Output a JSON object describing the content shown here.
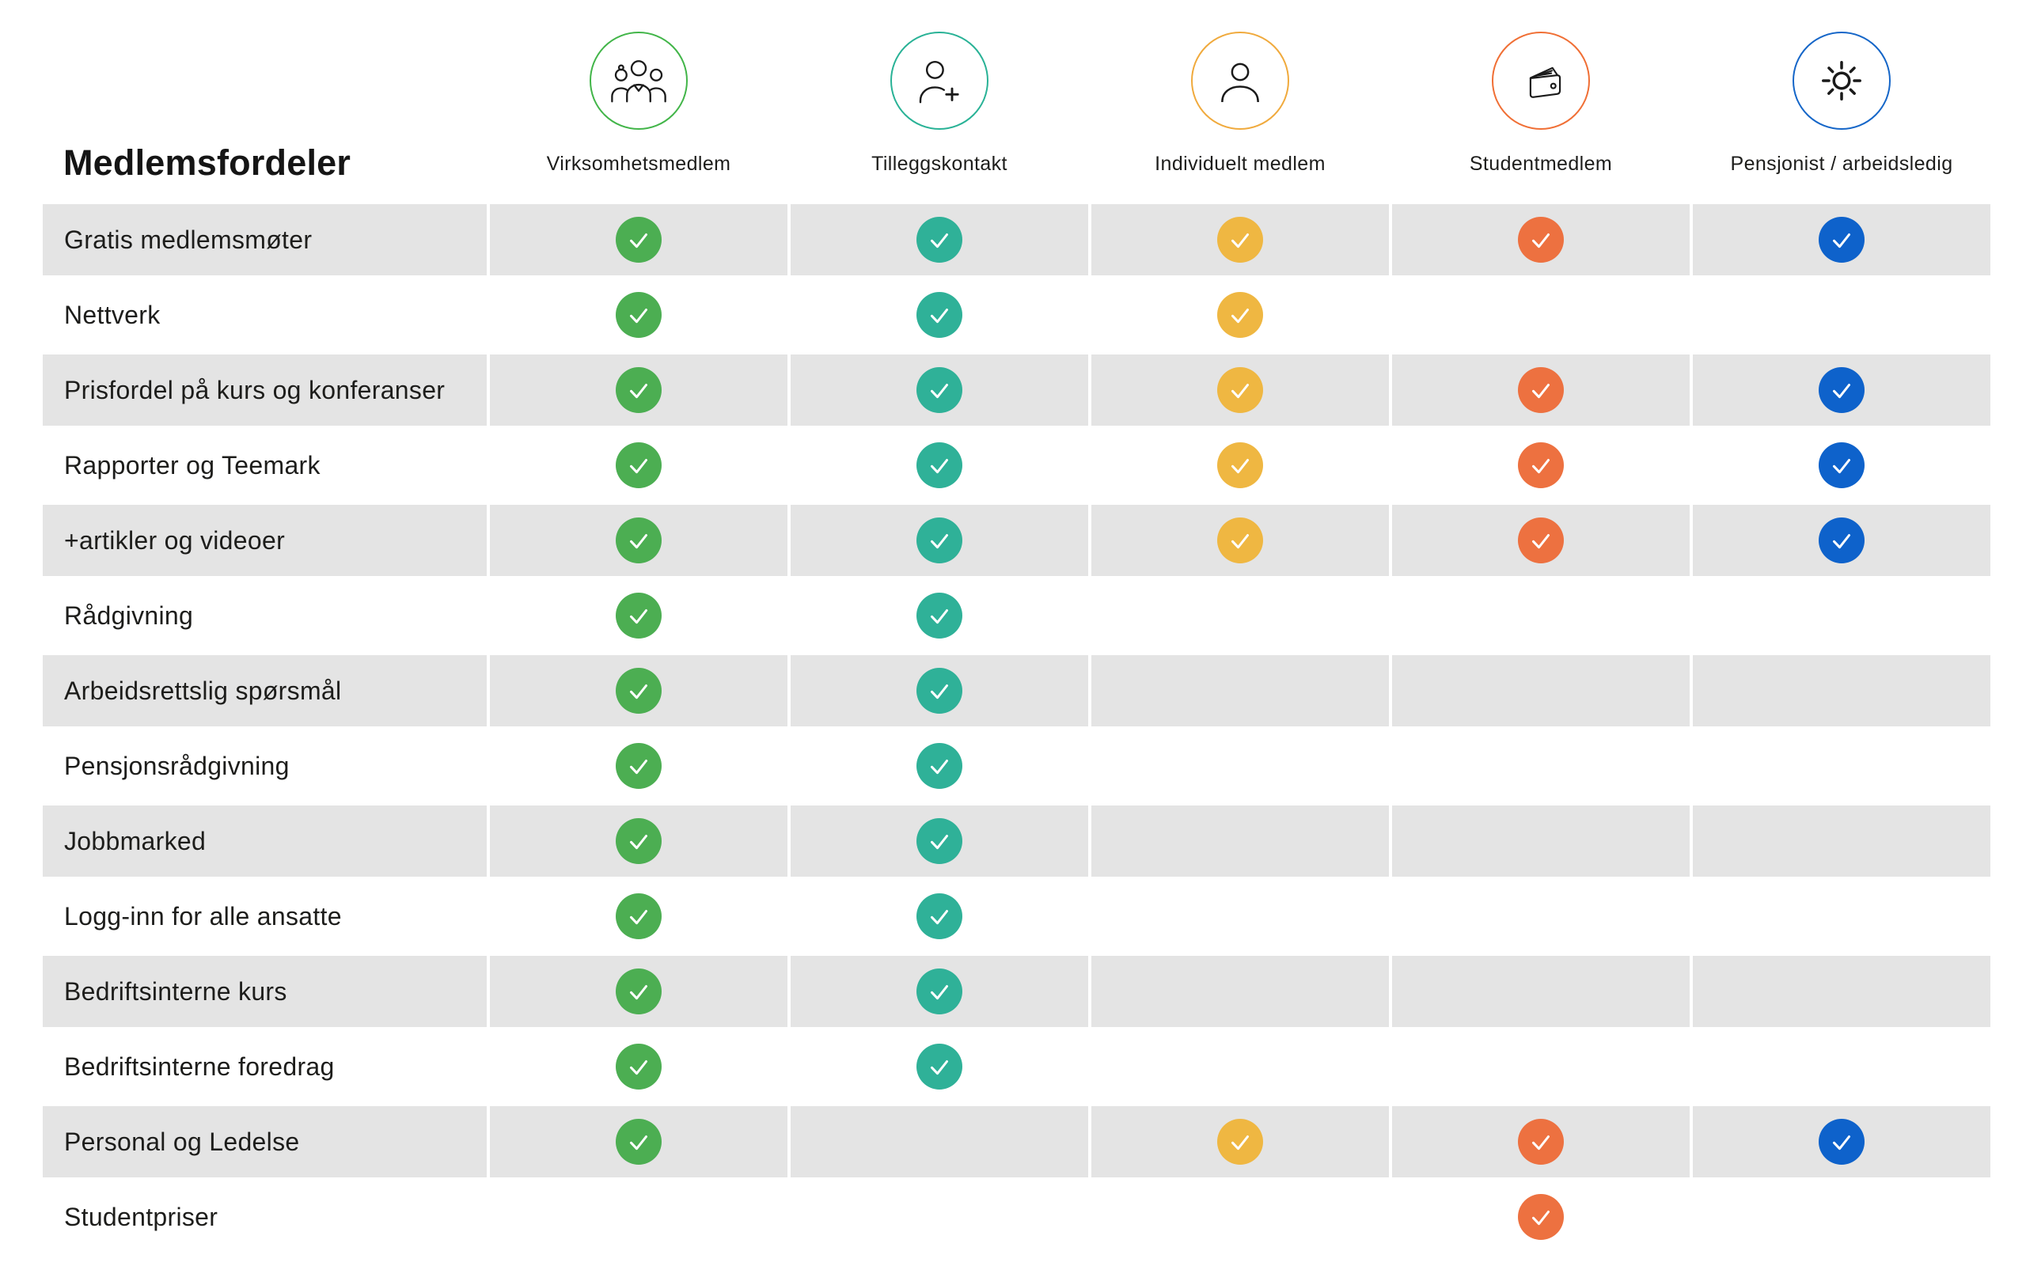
{
  "title": "Medlemsfordeler",
  "columns": [
    {
      "label": "Virksomhetsmedlem",
      "icon": "people-group-icon",
      "ring_color": "#42B549",
      "check_color": "#4CAE52"
    },
    {
      "label": "Tilleggskontakt",
      "icon": "person-plus-icon",
      "ring_color": "#29B296",
      "check_color": "#2FB198"
    },
    {
      "label": "Individuelt medlem",
      "icon": "person-icon",
      "ring_color": "#F0AA3D",
      "check_color": "#EFB742"
    },
    {
      "label": "Studentmedlem",
      "icon": "wallet-icon",
      "ring_color": "#F06F35",
      "check_color": "#ED7140"
    },
    {
      "label": "Pensjonist / arbeidsledig",
      "icon": "sun-icon",
      "ring_color": "#1566C8",
      "check_color": "#0E62CB"
    }
  ],
  "rows": [
    {
      "label": "Gratis medlemsmøter",
      "checks": [
        true,
        true,
        true,
        true,
        true
      ]
    },
    {
      "label": "Nettverk",
      "checks": [
        true,
        true,
        true,
        false,
        false
      ]
    },
    {
      "label": "Prisfordel på kurs og konferanser",
      "checks": [
        true,
        true,
        true,
        true,
        true
      ]
    },
    {
      "label": "Rapporter og Teemark",
      "checks": [
        true,
        true,
        true,
        true,
        true
      ]
    },
    {
      "label": "+artikler og videoer",
      "checks": [
        true,
        true,
        true,
        true,
        true
      ]
    },
    {
      "label": "Rådgivning",
      "checks": [
        true,
        true,
        false,
        false,
        false
      ]
    },
    {
      "label": "Arbeidsrettslig spørsmål",
      "checks": [
        true,
        true,
        false,
        false,
        false
      ]
    },
    {
      "label": "Pensjonsrådgivning",
      "checks": [
        true,
        true,
        false,
        false,
        false
      ]
    },
    {
      "label": "Jobbmarked",
      "checks": [
        true,
        true,
        false,
        false,
        false
      ]
    },
    {
      "label": "Logg-inn for alle ansatte",
      "checks": [
        true,
        true,
        false,
        false,
        false
      ]
    },
    {
      "label": "Bedriftsinterne kurs",
      "checks": [
        true,
        true,
        false,
        false,
        false
      ]
    },
    {
      "label": "Bedriftsinterne foredrag",
      "checks": [
        true,
        true,
        false,
        false,
        false
      ]
    },
    {
      "label": "Personal og Ledelse",
      "checks": [
        true,
        false,
        true,
        true,
        true
      ]
    },
    {
      "label": "Studentpriser",
      "checks": [
        false,
        false,
        false,
        true,
        false
      ]
    }
  ],
  "colors": {
    "row_stripe": "#E4E4E4",
    "background": "#FFFFFF",
    "text": "#1D1D1B",
    "check_mark": "#FFFFFF",
    "icon_stroke": "#1A1A1A"
  },
  "chart_data": {
    "type": "table",
    "title": "Medlemsfordeler",
    "columns": [
      "Virksomhetsmedlem",
      "Tilleggskontakt",
      "Individuelt medlem",
      "Studentmedlem",
      "Pensjonist / arbeidsledig"
    ],
    "rows": [
      {
        "label": "Gratis medlemsmøter",
        "values": [
          true,
          true,
          true,
          true,
          true
        ]
      },
      {
        "label": "Nettverk",
        "values": [
          true,
          true,
          true,
          false,
          false
        ]
      },
      {
        "label": "Prisfordel på kurs og konferanser",
        "values": [
          true,
          true,
          true,
          true,
          true
        ]
      },
      {
        "label": "Rapporter og Teemark",
        "values": [
          true,
          true,
          true,
          true,
          true
        ]
      },
      {
        "label": "+artikler og videoer",
        "values": [
          true,
          true,
          true,
          true,
          true
        ]
      },
      {
        "label": "Rådgivning",
        "values": [
          true,
          true,
          false,
          false,
          false
        ]
      },
      {
        "label": "Arbeidsrettslig spørsmål",
        "values": [
          true,
          true,
          false,
          false,
          false
        ]
      },
      {
        "label": "Pensjonsrådgivning",
        "values": [
          true,
          true,
          false,
          false,
          false
        ]
      },
      {
        "label": "Jobbmarked",
        "values": [
          true,
          true,
          false,
          false,
          false
        ]
      },
      {
        "label": "Logg-inn for alle ansatte",
        "values": [
          true,
          true,
          false,
          false,
          false
        ]
      },
      {
        "label": "Bedriftsinterne kurs",
        "values": [
          true,
          true,
          false,
          false,
          false
        ]
      },
      {
        "label": "Bedriftsinterne foredrag",
        "values": [
          true,
          true,
          false,
          false,
          false
        ]
      },
      {
        "label": "Personal og Ledelse",
        "values": [
          true,
          false,
          true,
          true,
          true
        ]
      },
      {
        "label": "Studentpriser",
        "values": [
          false,
          false,
          false,
          true,
          false
        ]
      }
    ],
    "legend_position": "top",
    "grid": false
  }
}
